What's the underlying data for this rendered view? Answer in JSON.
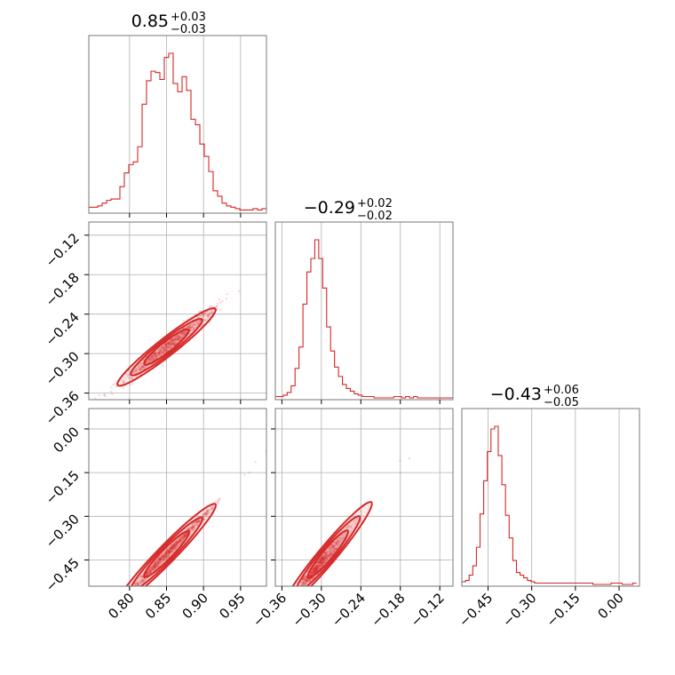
{
  "chart_data": {
    "type": "corner",
    "colors": {
      "series": "#d62728",
      "grid": "#b0b0b0",
      "frame": "#777777"
    },
    "grid": true,
    "parameters": [
      {
        "title": {
          "median": "0.85",
          "plus": "+0.03",
          "minus": "−0.03"
        },
        "range": [
          0.745,
          0.985
        ],
        "ticks": [
          0.8,
          0.85,
          0.9,
          0.95
        ],
        "tick_labels": [
          "0.80",
          "0.85",
          "0.90",
          "0.95"
        ],
        "hist": {
          "start": 0.745,
          "step": 0.006,
          "counts": [
            3,
            3,
            4,
            6,
            8,
            9,
            9,
            18,
            28,
            34,
            36,
            47,
            78,
            95,
            102,
            101,
            96,
            112,
            115,
            93,
            87,
            98,
            88,
            67,
            63,
            49,
            40,
            29,
            15,
            11,
            6,
            4,
            3,
            2,
            1,
            1,
            1,
            2,
            1,
            2
          ]
        }
      },
      {
        "title": {
          "median": "−0.29",
          "plus": "+0.02",
          "minus": "−0.02"
        },
        "range": [
          -0.37,
          -0.1
        ],
        "ticks": [
          -0.36,
          -0.3,
          -0.24,
          -0.18,
          -0.12
        ],
        "tick_labels": [
          "−0.36",
          "−0.30",
          "−0.24",
          "−0.18",
          "−0.12"
        ],
        "hist": {
          "start": -0.37,
          "step": 0.006,
          "counts": [
            1,
            1,
            2,
            4,
            9,
            22,
            38,
            70,
            94,
            104,
            118,
            104,
            82,
            53,
            35,
            23,
            16,
            10,
            7,
            5,
            3,
            2,
            1,
            1,
            1,
            0,
            0,
            0,
            0,
            0,
            1,
            1,
            0,
            1,
            0,
            1,
            0,
            0,
            0,
            0,
            0,
            0,
            0,
            0,
            0
          ]
        }
      },
      {
        "title": {
          "median": "−0.43",
          "plus": "+0.06",
          "minus": "−0.05"
        },
        "range": [
          -0.54,
          0.07
        ],
        "ticks": [
          -0.45,
          -0.3,
          -0.15,
          0.0
        ],
        "tick_labels": [
          "−0.45",
          "−0.30",
          "−0.15",
          "0.00"
        ],
        "hist": {
          "start": -0.54,
          "step": 0.0125,
          "counts": [
            2,
            3,
            7,
            14,
            28,
            53,
            78,
            100,
            117,
            119,
            97,
            75,
            52,
            35,
            18,
            9,
            7,
            5,
            3,
            2,
            1,
            1,
            1,
            1,
            1,
            1,
            1,
            1,
            1,
            1,
            1,
            1,
            1,
            1,
            1,
            1,
            0,
            0,
            0,
            0,
            0,
            1,
            1,
            1,
            0,
            0,
            0,
            1
          ]
        }
      }
    ],
    "correlations": [
      {
        "x": 0,
        "y": 1,
        "slope": 0.88,
        "noise": 0.006
      },
      {
        "x": 0,
        "y": 2,
        "slope": 2.6,
        "noise": 0.007
      },
      {
        "x": 1,
        "y": 2,
        "slope": 2.7,
        "noise": 0.015
      }
    ]
  }
}
